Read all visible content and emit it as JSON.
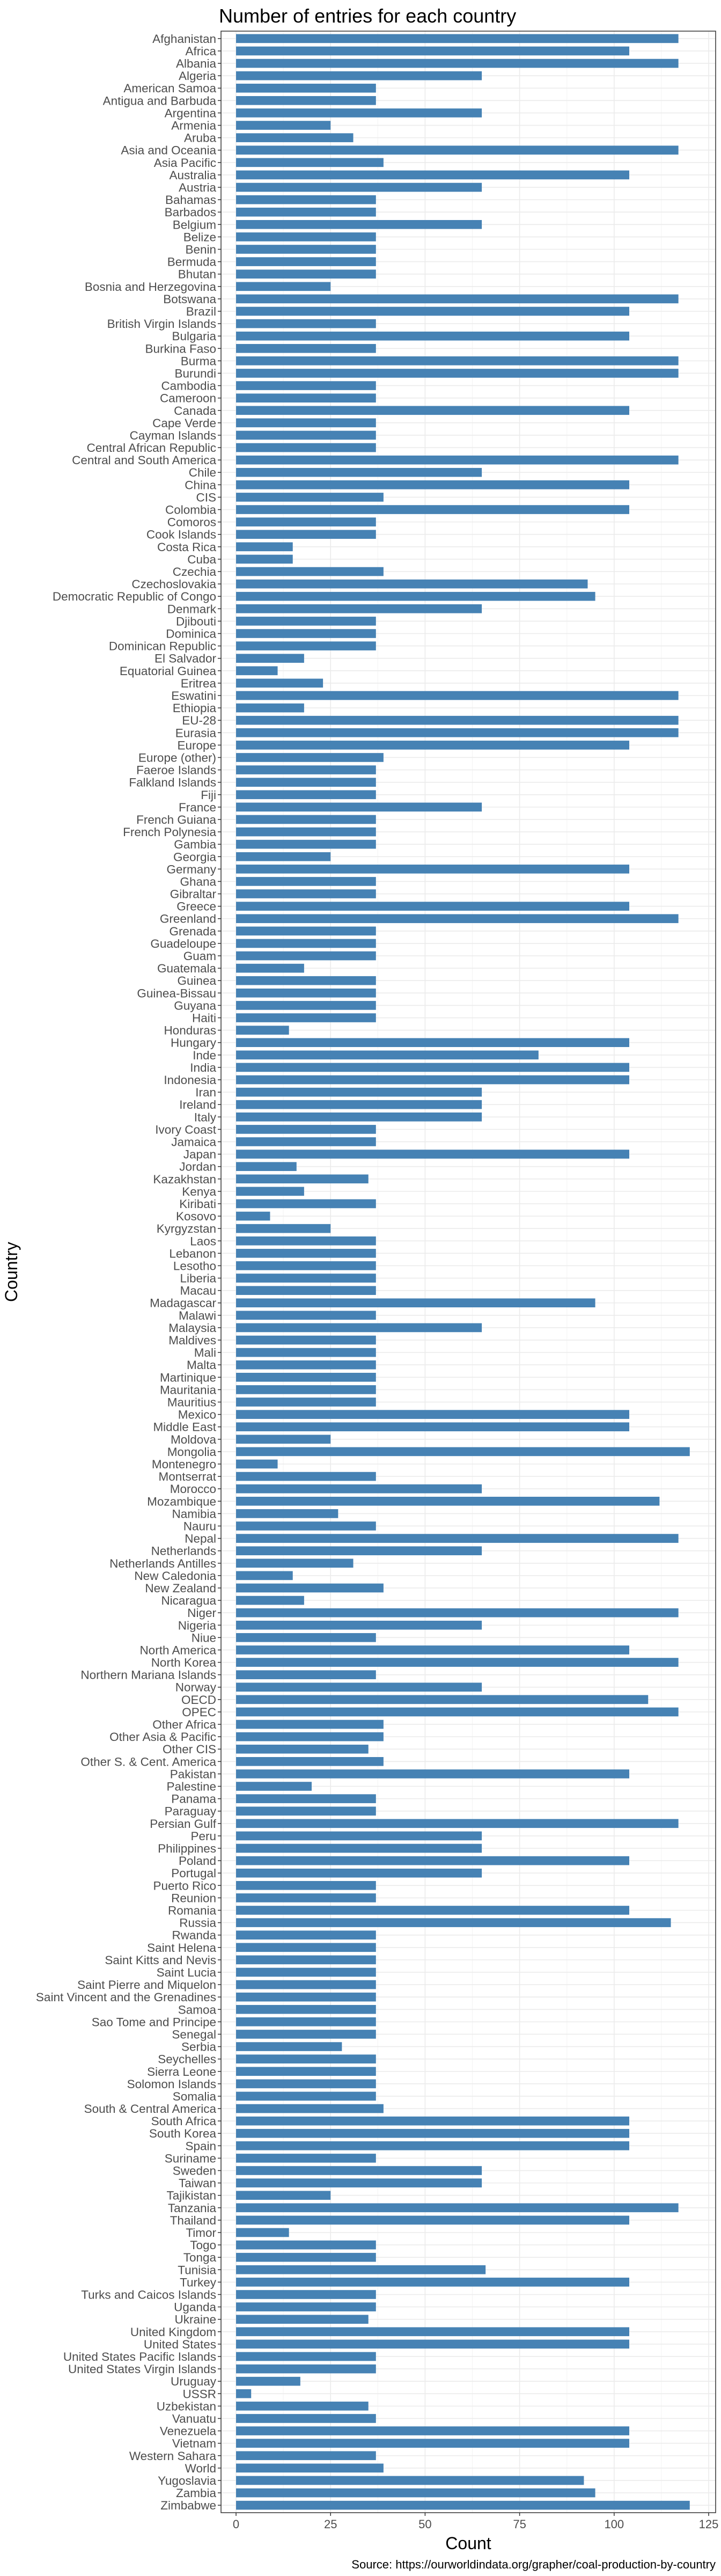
{
  "chart_data": {
    "type": "bar",
    "orientation": "horizontal",
    "title": "Number of entries for each country",
    "xlabel": "Count",
    "ylabel": "Country",
    "caption": "Source: https://ourworldindata.org/grapher/coal-production-by-country",
    "xlim": [
      0,
      125
    ],
    "xticks": [
      0,
      25,
      50,
      75,
      100,
      125
    ],
    "grid": true,
    "bar_color": "#4682b4",
    "categories": [
      "Afghanistan",
      "Africa",
      "Albania",
      "Algeria",
      "American Samoa",
      "Antigua and Barbuda",
      "Argentina",
      "Armenia",
      "Aruba",
      "Asia and Oceania",
      "Asia Pacific",
      "Australia",
      "Austria",
      "Bahamas",
      "Barbados",
      "Belgium",
      "Belize",
      "Benin",
      "Bermuda",
      "Bhutan",
      "Bosnia and Herzegovina",
      "Botswana",
      "Brazil",
      "British Virgin Islands",
      "Bulgaria",
      "Burkina Faso",
      "Burma",
      "Burundi",
      "Cambodia",
      "Cameroon",
      "Canada",
      "Cape Verde",
      "Cayman Islands",
      "Central African Republic",
      "Central and South America",
      "Chile",
      "China",
      "CIS",
      "Colombia",
      "Comoros",
      "Cook Islands",
      "Costa Rica",
      "Cuba",
      "Czechia",
      "Czechoslovakia",
      "Democratic Republic of Congo",
      "Denmark",
      "Djibouti",
      "Dominica",
      "Dominican Republic",
      "El Salvador",
      "Equatorial Guinea",
      "Eritrea",
      "Eswatini",
      "Ethiopia",
      "EU-28",
      "Eurasia",
      "Europe",
      "Europe (other)",
      "Faeroe Islands",
      "Falkland Islands",
      "Fiji",
      "France",
      "French Guiana",
      "French Polynesia",
      "Gambia",
      "Georgia",
      "Germany",
      "Ghana",
      "Gibraltar",
      "Greece",
      "Greenland",
      "Grenada",
      "Guadeloupe",
      "Guam",
      "Guatemala",
      "Guinea",
      "Guinea-Bissau",
      "Guyana",
      "Haiti",
      "Honduras",
      "Hungary",
      "Inde",
      "India",
      "Indonesia",
      "Iran",
      "Ireland",
      "Italy",
      "Ivory Coast",
      "Jamaica",
      "Japan",
      "Jordan",
      "Kazakhstan",
      "Kenya",
      "Kiribati",
      "Kosovo",
      "Kyrgyzstan",
      "Laos",
      "Lebanon",
      "Lesotho",
      "Liberia",
      "Macau",
      "Madagascar",
      "Malawi",
      "Malaysia",
      "Maldives",
      "Mali",
      "Malta",
      "Martinique",
      "Mauritania",
      "Mauritius",
      "Mexico",
      "Middle East",
      "Moldova",
      "Mongolia",
      "Montenegro",
      "Montserrat",
      "Morocco",
      "Mozambique",
      "Namibia",
      "Nauru",
      "Nepal",
      "Netherlands",
      "Netherlands Antilles",
      "New Caledonia",
      "New Zealand",
      "Nicaragua",
      "Niger",
      "Nigeria",
      "Niue",
      "North America",
      "North Korea",
      "Northern Mariana Islands",
      "Norway",
      "OECD",
      "OPEC",
      "Other Africa",
      "Other Asia & Pacific",
      "Other CIS",
      "Other S. & Cent. America",
      "Pakistan",
      "Palestine",
      "Panama",
      "Paraguay",
      "Persian Gulf",
      "Peru",
      "Philippines",
      "Poland",
      "Portugal",
      "Puerto Rico",
      "Reunion",
      "Romania",
      "Russia",
      "Rwanda",
      "Saint Helena",
      "Saint Kitts and Nevis",
      "Saint Lucia",
      "Saint Pierre and Miquelon",
      "Saint Vincent and the Grenadines",
      "Samoa",
      "Sao Tome and Principe",
      "Senegal",
      "Serbia",
      "Seychelles",
      "Sierra Leone",
      "Solomon Islands",
      "Somalia",
      "South & Central America",
      "South Africa",
      "South Korea",
      "Spain",
      "Suriname",
      "Sweden",
      "Taiwan",
      "Tajikistan",
      "Tanzania",
      "Thailand",
      "Timor",
      "Togo",
      "Tonga",
      "Tunisia",
      "Turkey",
      "Turks and Caicos Islands",
      "Uganda",
      "Ukraine",
      "United Kingdom",
      "United States",
      "United States Pacific Islands",
      "United States Virgin Islands",
      "Uruguay",
      "USSR",
      "Uzbekistan",
      "Vanuatu",
      "Venezuela",
      "Vietnam",
      "Western Sahara",
      "World",
      "Yugoslavia",
      "Zambia",
      "Zimbabwe"
    ],
    "values": [
      117,
      104,
      117,
      65,
      37,
      37,
      65,
      25,
      31,
      117,
      39,
      104,
      65,
      37,
      37,
      65,
      37,
      37,
      37,
      37,
      25,
      117,
      104,
      37,
      104,
      37,
      117,
      117,
      37,
      37,
      104,
      37,
      37,
      37,
      117,
      65,
      104,
      39,
      104,
      37,
      37,
      15,
      15,
      39,
      93,
      95,
      65,
      37,
      37,
      37,
      18,
      11,
      23,
      117,
      18,
      117,
      117,
      104,
      39,
      37,
      37,
      37,
      65,
      37,
      37,
      37,
      25,
      104,
      37,
      37,
      104,
      117,
      37,
      37,
      37,
      18,
      37,
      37,
      37,
      37,
      14,
      104,
      80,
      104,
      104,
      65,
      65,
      65,
      37,
      37,
      104,
      16,
      35,
      18,
      37,
      9,
      25,
      37,
      37,
      37,
      37,
      37,
      95,
      37,
      65,
      37,
      37,
      37,
      37,
      37,
      37,
      104,
      104,
      25,
      120,
      11,
      37,
      65,
      112,
      27,
      37,
      117,
      65,
      31,
      15,
      39,
      18,
      117,
      65,
      37,
      104,
      117,
      37,
      65,
      109,
      117,
      39,
      39,
      35,
      39,
      104,
      20,
      37,
      37,
      117,
      65,
      65,
      104,
      65,
      37,
      37,
      104,
      115,
      37,
      37,
      37,
      37,
      37,
      37,
      37,
      37,
      37,
      28,
      37,
      37,
      37,
      37,
      39,
      104,
      104,
      104,
      37,
      65,
      65,
      25,
      117,
      104,
      14,
      37,
      37,
      66,
      104,
      37,
      37,
      35,
      104,
      104,
      37,
      37,
      17,
      4,
      35,
      37,
      104,
      104,
      37,
      39,
      92,
      95,
      120
    ]
  }
}
